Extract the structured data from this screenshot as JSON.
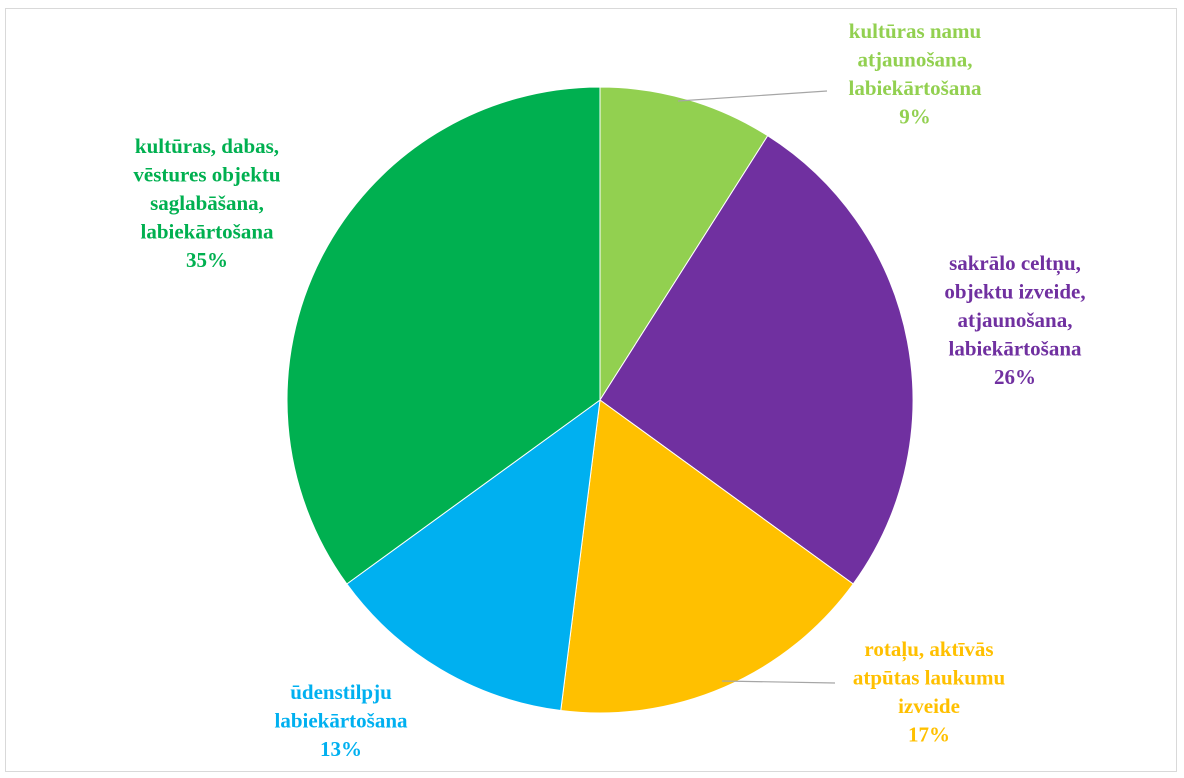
{
  "chart_data": {
    "type": "pie",
    "title": "",
    "slices": [
      {
        "lines": [
          "kultūras namu",
          "atjaunošana,",
          "labiekārtošana"
        ],
        "percent_label": "9%",
        "value": 9,
        "color": "#92d050"
      },
      {
        "lines": [
          "sakrālo celtņu,",
          "objektu izveide,",
          "atjaunošana,",
          "labiekārtošana"
        ],
        "percent_label": "26%",
        "value": 26,
        "color": "#7030a0"
      },
      {
        "lines": [
          "rotaļu, aktīvās",
          "atpūtas laukumu",
          "izveide"
        ],
        "percent_label": "17%",
        "value": 17,
        "color": "#ffc000"
      },
      {
        "lines": [
          "ūdenstilpju",
          "labiekārtošana"
        ],
        "percent_label": "13%",
        "value": 13,
        "color": "#00b0f0"
      },
      {
        "lines": [
          "kultūras, dabas,",
          "vēstures objektu",
          "saglabāšana,",
          "labiekārtošana"
        ],
        "percent_label": "35%",
        "value": 35,
        "color": "#00b050"
      }
    ]
  }
}
